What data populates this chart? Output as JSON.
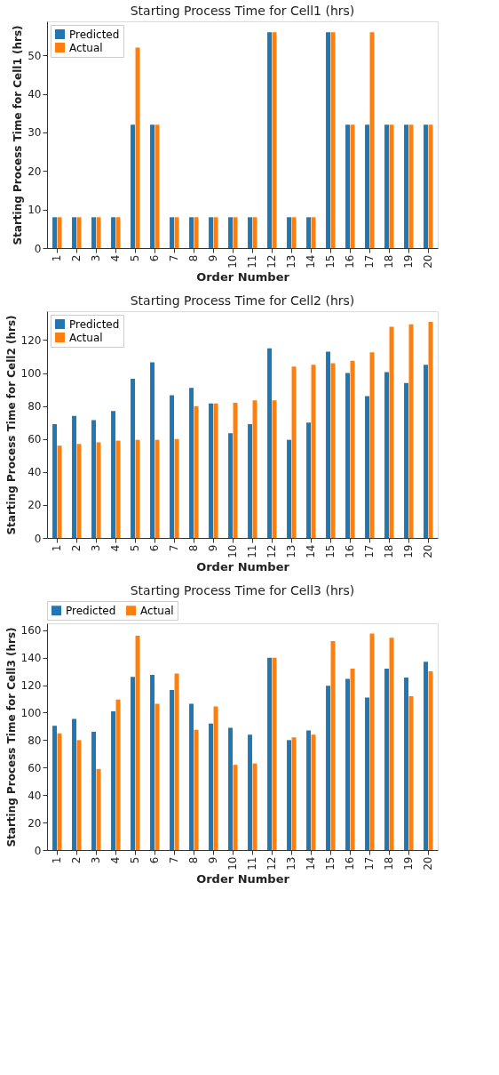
{
  "chart_data": [
    {
      "type": "bar",
      "title": "Starting Process Time for Cell1 (hrs)",
      "xlabel": "Order Number",
      "ylabel": "Starting Process Time for Cell1 (hrs)",
      "categories": [
        "1",
        "2",
        "3",
        "4",
        "5",
        "6",
        "7",
        "8",
        "9",
        "10",
        "11",
        "12",
        "13",
        "14",
        "15",
        "16",
        "17",
        "18",
        "19",
        "20"
      ],
      "series": [
        {
          "name": "Predicted",
          "color": "#1f77b4",
          "values": [
            8,
            8,
            8,
            8,
            32,
            32,
            8,
            8,
            8,
            8,
            8,
            56,
            8,
            8,
            56,
            32,
            32,
            32,
            32,
            32
          ]
        },
        {
          "name": "Actual",
          "color": "#ff7f0e",
          "values": [
            8,
            8,
            8,
            8,
            52,
            32,
            8,
            8,
            8,
            8,
            8,
            56,
            8,
            8,
            56,
            32,
            56,
            32,
            32,
            32
          ]
        }
      ],
      "ylim": [
        0,
        58.8
      ],
      "yticks": [
        0,
        10,
        20,
        30,
        40,
        50
      ],
      "grid": false,
      "legend": "top left"
    },
    {
      "type": "bar",
      "title": "Starting Process Time for Cell2 (hrs)",
      "xlabel": "Order Number",
      "ylabel": "Starting Process Time for Cell2 (hrs)",
      "categories": [
        "1",
        "2",
        "3",
        "4",
        "5",
        "6",
        "7",
        "8",
        "9",
        "10",
        "11",
        "12",
        "13",
        "14",
        "15",
        "16",
        "17",
        "18",
        "19",
        "20"
      ],
      "series": [
        {
          "name": "Predicted",
          "color": "#1f77b4",
          "values": [
            69,
            74,
            71.5,
            77,
            96.5,
            106.5,
            86.5,
            91,
            81.5,
            63.5,
            69,
            115,
            59.5,
            70,
            113,
            100,
            86,
            100.5,
            94,
            105
          ]
        },
        {
          "name": "Actual",
          "color": "#ff7f0e",
          "values": [
            56,
            57,
            58,
            59,
            59.5,
            59.5,
            60,
            80,
            81.5,
            82,
            83.5,
            83.5,
            104,
            105,
            106,
            107.5,
            112.5,
            128,
            129.5,
            131
          ]
        }
      ],
      "ylim": [
        0,
        137.5
      ],
      "yticks": [
        0,
        20,
        40,
        60,
        80,
        100,
        120
      ],
      "grid": false,
      "legend": "top left"
    },
    {
      "type": "bar",
      "title": "Starting Process Time for Cell3 (hrs)",
      "xlabel": "Order Number",
      "ylabel": "Starting Process Time for Cell3 (hrs)",
      "categories": [
        "1",
        "2",
        "3",
        "4",
        "5",
        "6",
        "7",
        "8",
        "9",
        "10",
        "11",
        "12",
        "13",
        "14",
        "15",
        "16",
        "17",
        "18",
        "19",
        "20"
      ],
      "series": [
        {
          "name": "Predicted",
          "color": "#1f77b4",
          "values": [
            90.5,
            95.5,
            86,
            101,
            126,
            127.5,
            116.5,
            106.5,
            92,
            89,
            84,
            140,
            80,
            87,
            119.5,
            124.5,
            111,
            132,
            125.5,
            137
          ]
        },
        {
          "name": "Actual",
          "color": "#ff7f0e",
          "values": [
            85,
            80,
            59,
            109.5,
            156,
            106.5,
            128.5,
            87.5,
            104.5,
            62,
            63,
            140,
            82,
            84,
            152,
            132,
            157.5,
            154.5,
            112,
            130
          ]
        }
      ],
      "ylim": [
        0,
        165
      ],
      "yticks": [
        0,
        20,
        40,
        60,
        80,
        100,
        120,
        140,
        160
      ],
      "grid": false,
      "legend": "top"
    }
  ]
}
